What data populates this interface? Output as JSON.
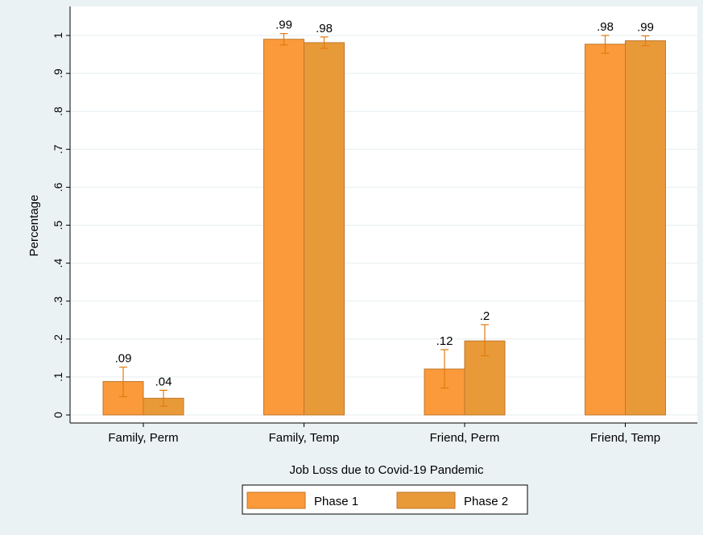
{
  "chart_data": {
    "type": "bar",
    "title": "",
    "xlabel": "Job Loss due to Covid-19 Pandemic",
    "ylabel": "Percentage",
    "ylim": [
      0,
      1
    ],
    "yticks": [
      {
        "value": 0,
        "label": "0"
      },
      {
        "value": 0.1,
        "label": ".1"
      },
      {
        "value": 0.2,
        "label": ".2"
      },
      {
        "value": 0.3,
        "label": ".3"
      },
      {
        "value": 0.4,
        "label": ".4"
      },
      {
        "value": 0.5,
        "label": ".5"
      },
      {
        "value": 0.6,
        "label": ".6"
      },
      {
        "value": 0.7,
        "label": ".7"
      },
      {
        "value": 0.8,
        "label": ".8"
      },
      {
        "value": 0.9,
        "label": ".9"
      },
      {
        "value": 1,
        "label": "1"
      }
    ],
    "categories": [
      "Family, Perm",
      "Family, Temp",
      "Friend, Perm",
      "Friend, Temp"
    ],
    "series": [
      {
        "name": "Phase 1",
        "color": "#fb9a3a",
        "values": [
          0.088,
          0.99,
          0.121,
          0.977
        ],
        "labels": [
          ".09",
          ".99",
          ".12",
          ".98"
        ],
        "ci_low": [
          0.048,
          0.975,
          0.071,
          0.953
        ],
        "ci_high": [
          0.126,
          1.005,
          0.172,
          1.0
        ]
      },
      {
        "name": "Phase 2",
        "color": "#e99a38",
        "values": [
          0.044,
          0.981,
          0.195,
          0.986
        ],
        "labels": [
          ".04",
          ".98",
          ".2",
          ".99"
        ],
        "ci_low": [
          0.023,
          0.966,
          0.156,
          0.973
        ],
        "ci_high": [
          0.065,
          0.996,
          0.238,
          0.999
        ]
      }
    ],
    "error_bar_color": "#e07b10",
    "grid": true,
    "legend": {
      "position": "bottom",
      "entries": [
        "Phase 1",
        "Phase 2"
      ]
    }
  }
}
